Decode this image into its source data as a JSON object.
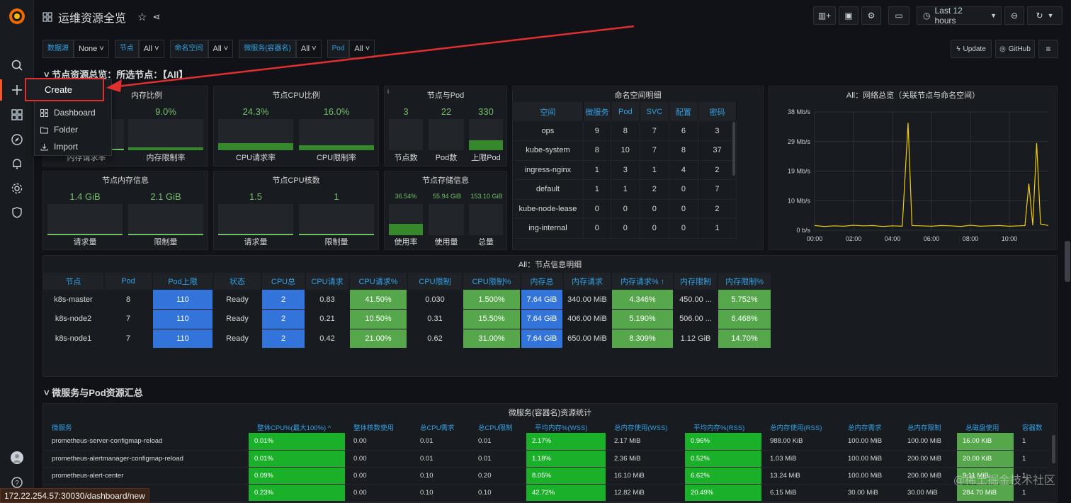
{
  "header": {
    "title": "运维资源全览",
    "time_range": "Last 12 hours",
    "update_label": "Update",
    "github_label": "GitHub"
  },
  "variables": [
    {
      "label": "数据源",
      "value": "None"
    },
    {
      "label": "节点",
      "value": "All"
    },
    {
      "label": "命名空间",
      "value": "All"
    },
    {
      "label": "微服务(容器名)",
      "value": "All"
    },
    {
      "label": "Pod",
      "value": "All"
    }
  ],
  "create_menu": {
    "title": "Create",
    "items": [
      "Dashboard",
      "Folder",
      "Import"
    ]
  },
  "row1": {
    "title": "节点资源总览：所选节点：【All】"
  },
  "mem_ratio_panel": {
    "title": "内存比例",
    "req_label": "内存请求率",
    "limit_value": "9.0%",
    "limit_label": "内存限制率"
  },
  "cpu_ratio_panel": {
    "title": "节点CPU比例",
    "req_value": "24.3%",
    "req_label": "CPU请求率",
    "limit_value": "16.0%",
    "limit_label": "CPU限制率"
  },
  "node_pod_panel": {
    "title": "节点与Pod",
    "nodes_value": "3",
    "nodes_label": "节点数",
    "pods_value": "22",
    "pods_label": "Pod数",
    "cap_value": "330",
    "cap_label": "上限Pod"
  },
  "mem_info_panel": {
    "title": "节点内存信息",
    "req_value": "1.4 GiB",
    "req_label": "请求量",
    "limit_value": "2.1 GiB",
    "limit_label": "限制量"
  },
  "cpu_cores_panel": {
    "title": "节点CPU核数",
    "req_value": "1.5",
    "req_label": "请求量",
    "limit_value": "1",
    "limit_label": "限制量"
  },
  "storage_panel": {
    "title": "节点存储信息",
    "usage_value": "36.54%",
    "usage_label": "使用率",
    "used_value": "55.94 GiB",
    "used_label": "使用量",
    "total_value": "153.10 GiB",
    "total_label": "总量"
  },
  "ns_panel": {
    "title": "命名空间明细",
    "headers": [
      "空间",
      "微服务",
      "Pod",
      "SVC",
      "配置",
      "密码"
    ],
    "rows": [
      [
        "ops",
        "9",
        "8",
        "7",
        "6",
        "3"
      ],
      [
        "kube-system",
        "8",
        "10",
        "7",
        "8",
        "37"
      ],
      [
        "ingress-nginx",
        "1",
        "3",
        "1",
        "4",
        "2"
      ],
      [
        "default",
        "1",
        "1",
        "2",
        "0",
        "7"
      ],
      [
        "kube-node-lease",
        "0",
        "0",
        "0",
        "0",
        "2"
      ],
      [
        "ing-internal",
        "0",
        "0",
        "0",
        "0",
        "1"
      ]
    ]
  },
  "net_panel": {
    "title": "All：网络总览（关联节点与命名空间）"
  },
  "chart_data": {
    "type": "line",
    "title": "All：网络总览（关联节点与命名空间）",
    "y_ticks": [
      "0 b/s",
      "10 Mb/s",
      "19 Mb/s",
      "29 Mb/s",
      "38 Mb/s"
    ],
    "x_ticks": [
      "00:00",
      "02:00",
      "04:00",
      "06:00",
      "08:00",
      "10:00"
    ],
    "ylim": [
      0,
      38
    ],
    "series": [
      {
        "color": "#f2cc0c",
        "x": [
          0,
          0.5,
          1,
          1.5,
          2,
          2.5,
          3,
          3.5,
          4,
          4.5,
          4.8,
          5,
          5.5,
          6,
          6.5,
          7,
          7.5,
          8,
          8.5,
          9,
          9.5,
          10,
          10.5,
          10.8,
          11,
          11.2,
          11.4,
          11.6,
          11.8,
          12
        ],
        "y": [
          1.5,
          1.2,
          1.4,
          1.3,
          1.6,
          1.4,
          1.5,
          1.2,
          1.4,
          1.3,
          34.5,
          1.5,
          1.4,
          1.3,
          1.5,
          1.4,
          1.2,
          1.6,
          1.3,
          1.4,
          1.5,
          1.3,
          1.4,
          1.5,
          15,
          1.6,
          28,
          2,
          1.8,
          1.5
        ]
      }
    ]
  },
  "node_panel": {
    "title": "All：节点信息明细",
    "headers": [
      "节点",
      "Pod",
      "Pod上限",
      "状态",
      "CPU总",
      "CPU请求",
      "CPU请求%",
      "CPU限制",
      "CPU限制%",
      "内存总",
      "内存请求",
      "内存请求% ↑",
      "内存限制",
      "内存限制%"
    ],
    "rows": [
      [
        "k8s-master",
        "8",
        "110",
        "Ready",
        "2",
        "0.83",
        "41.50%",
        "0.030",
        "1.500%",
        "7.64 GiB",
        "340.00 MiB",
        "4.346%",
        "450.00 ...",
        "5.752%"
      ],
      [
        "k8s-node2",
        "7",
        "110",
        "Ready",
        "2",
        "0.21",
        "10.50%",
        "0.31",
        "15.50%",
        "7.64 GiB",
        "406.00 MiB",
        "5.190%",
        "506.00 ...",
        "6.468%"
      ],
      [
        "k8s-node1",
        "7",
        "110",
        "Ready",
        "2",
        "0.42",
        "21.00%",
        "0.62",
        "31.00%",
        "7.64 GiB",
        "650.00 MiB",
        "8.309%",
        "1.12 GiB",
        "14.70%"
      ]
    ]
  },
  "row2": {
    "title": "微服务与Pod资源汇总"
  },
  "ms_panel": {
    "title": "微服务(容器名)资源统计",
    "headers": [
      "微服务",
      "整体CPU%(最大100%) ^",
      "整体核数使用",
      "总CPU需求",
      "总CPU限制",
      "平均内存%(WSS)",
      "总内存使用(WSS)",
      "平均内存%(RSS)",
      "总内存使用(RSS)",
      "总内存需求",
      "总内存限制",
      "总磁盘使用",
      "容器数"
    ],
    "rows": [
      [
        "prometheus-server-configmap-reload",
        "0.01%",
        "0.00",
        "0.01",
        "0.01",
        "2.17%",
        "2.17 MiB",
        "0.96%",
        "988.00 KiB",
        "100.00 MiB",
        "100.00 MiB",
        "16.00 KiB",
        "1"
      ],
      [
        "prometheus-alertmanager-configmap-reload",
        "0.01%",
        "0.00",
        "0.01",
        "0.01",
        "1.18%",
        "2.36 MiB",
        "0.52%",
        "1.03 MiB",
        "100.00 MiB",
        "200.00 MiB",
        "20.00 KiB",
        "1"
      ],
      [
        "prometheus-alert-center",
        "0.09%",
        "0.00",
        "0.10",
        "0.20",
        "8.05%",
        "16.10 MiB",
        "6.62%",
        "13.24 MiB",
        "100.00 MiB",
        "200.00 MiB",
        "9.11 MiB",
        "1"
      ],
      [
        "",
        "0.23%",
        "0.00",
        "0.10",
        "0.10",
        "42.72%",
        "12.82 MiB",
        "20.49%",
        "6.15 MiB",
        "30.00 MiB",
        "30.00 MiB",
        "284.70 MiB",
        "1"
      ]
    ]
  },
  "status_url": "172.22.254.57:30030/dashboard/new",
  "watermark": "@稀土掘金技术社区",
  "colors": {
    "accent": "#33a2e5",
    "green": "#73bf69",
    "blue": "#3274d9",
    "red": "#e02f2f"
  }
}
